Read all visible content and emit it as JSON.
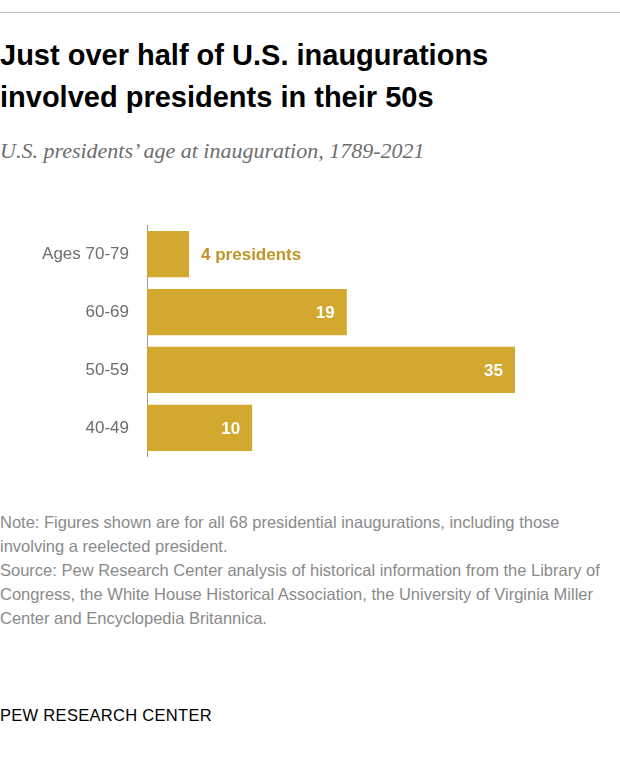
{
  "chart_data": {
    "type": "bar",
    "orientation": "horizontal",
    "title": "Just over half of U.S. inaugurations involved presidents in their 50s",
    "subtitle": "U.S. presidents’ age at inauguration, 1789-2021",
    "categories": [
      "Ages 70-79",
      "60-69",
      "50-59",
      "40-49"
    ],
    "values": [
      4,
      19,
      35,
      10
    ],
    "value_labels": [
      "4 presidents",
      "19",
      "35",
      "10"
    ],
    "data_labels": true,
    "color": "#d3a82f",
    "xlim": [
      0,
      35
    ],
    "grid": false,
    "tick_labels": "y",
    "note": "Note: Figures shown are for all 68 presidential inaugurations, including those involving a reelected president.",
    "source": "Source: Pew Research Center analysis of historical information from the Library of Congress, the White House Historical Association, the University of Virginia Miller Center and Encyclopedia Britannica.",
    "credit": "PEW RESEARCH CENTER"
  }
}
